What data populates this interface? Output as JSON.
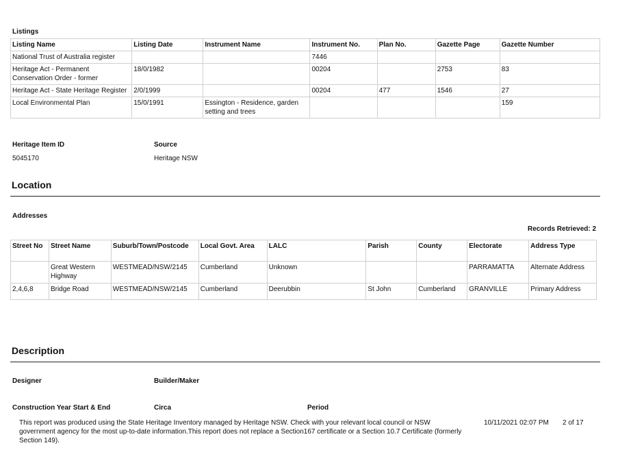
{
  "listings": {
    "heading": "Listings",
    "columns": [
      "Listing Name",
      "Listing Date",
      "Instrument Name",
      "Instrument No.",
      "Plan No.",
      "Gazette Page",
      "Gazette Number"
    ],
    "rows": [
      [
        "National Trust of Australia register",
        "",
        "",
        "7446",
        "",
        "",
        ""
      ],
      [
        "Heritage Act - Permanent Conservation Order - former",
        "18/0/1982",
        "",
        "00204",
        "",
        "2753",
        "83"
      ],
      [
        "Heritage Act - State Heritage Register",
        "2/0/1999",
        "",
        "00204",
        "477",
        "1546",
        "27"
      ],
      [
        "Local Environmental Plan",
        "15/0/1991",
        "Essington - Residence, garden setting and trees",
        "",
        "",
        "",
        "159"
      ]
    ]
  },
  "item_info": {
    "id_label": "Heritage Item ID",
    "id_value": "5045170",
    "source_label": "Source",
    "source_value": "Heritage NSW"
  },
  "location": {
    "title": "Location",
    "addresses_label": "Addresses",
    "records_retrieved": "Records Retrieved: 2",
    "columns": [
      "Street No",
      "Street Name",
      "Suburb/Town/Postcode",
      "Local Govt. Area",
      "LALC",
      "Parish",
      "County",
      "Electorate",
      "Address Type"
    ],
    "rows": [
      [
        "",
        "Great Western Highway",
        "WESTMEAD/NSW/2145",
        "Cumberland",
        "Unknown",
        "",
        "",
        "PARRAMATTA",
        "Alternate Address"
      ],
      [
        "2,4,6,8",
        "Bridge Road",
        "WESTMEAD/NSW/2145",
        "Cumberland",
        "Deerubbin",
        "St John",
        "Cumberland",
        "GRANVILLE",
        "Primary Address"
      ]
    ]
  },
  "description": {
    "title": "Description",
    "designer_label": "Designer",
    "builder_label": "Builder/Maker",
    "construction_label": "Construction Year Start & End",
    "circa_label": "Circa",
    "period_label": "Period"
  },
  "footer": {
    "disclaimer": "This report was produced using the State Heritage Inventory managed by Heritage NSW. Check with your relevant local council or NSW government agency for the most up-to-date information.This report does not replace a Section167 certificate or a Section 10.7 Certificate (formerly Section 149).",
    "timestamp": "10/11/2021 02:07 PM",
    "page": "2 of 17"
  }
}
